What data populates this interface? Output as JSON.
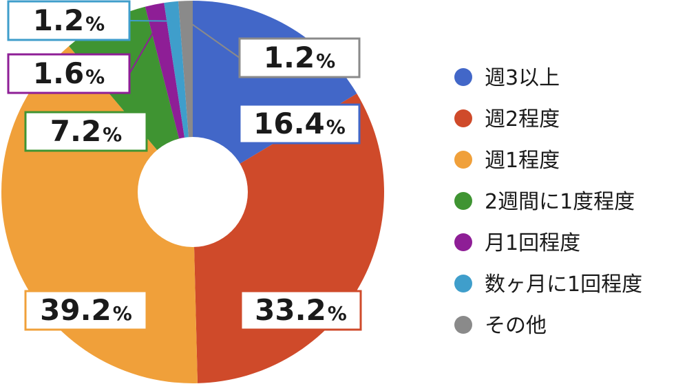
{
  "chart_data": {
    "type": "pie",
    "donut": true,
    "title": "",
    "unit": "%",
    "categories": [
      "週3以上",
      "週2程度",
      "週1程度",
      "2週間に1度程度",
      "月1回程度",
      "数ヶ月に1回程度",
      "その他"
    ],
    "values": [
      16.4,
      33.2,
      39.2,
      7.2,
      1.6,
      1.2,
      1.2
    ],
    "value_labels": [
      "16.4",
      "33.2",
      "39.2",
      "7.2",
      "1.6",
      "1.2",
      "1.2"
    ],
    "colors": [
      "#4267c8",
      "#cf4a2a",
      "#f0a03a",
      "#3f9432",
      "#8e1e96",
      "#3f9ecb",
      "#8a8a8a"
    ],
    "legend_position": "right"
  }
}
